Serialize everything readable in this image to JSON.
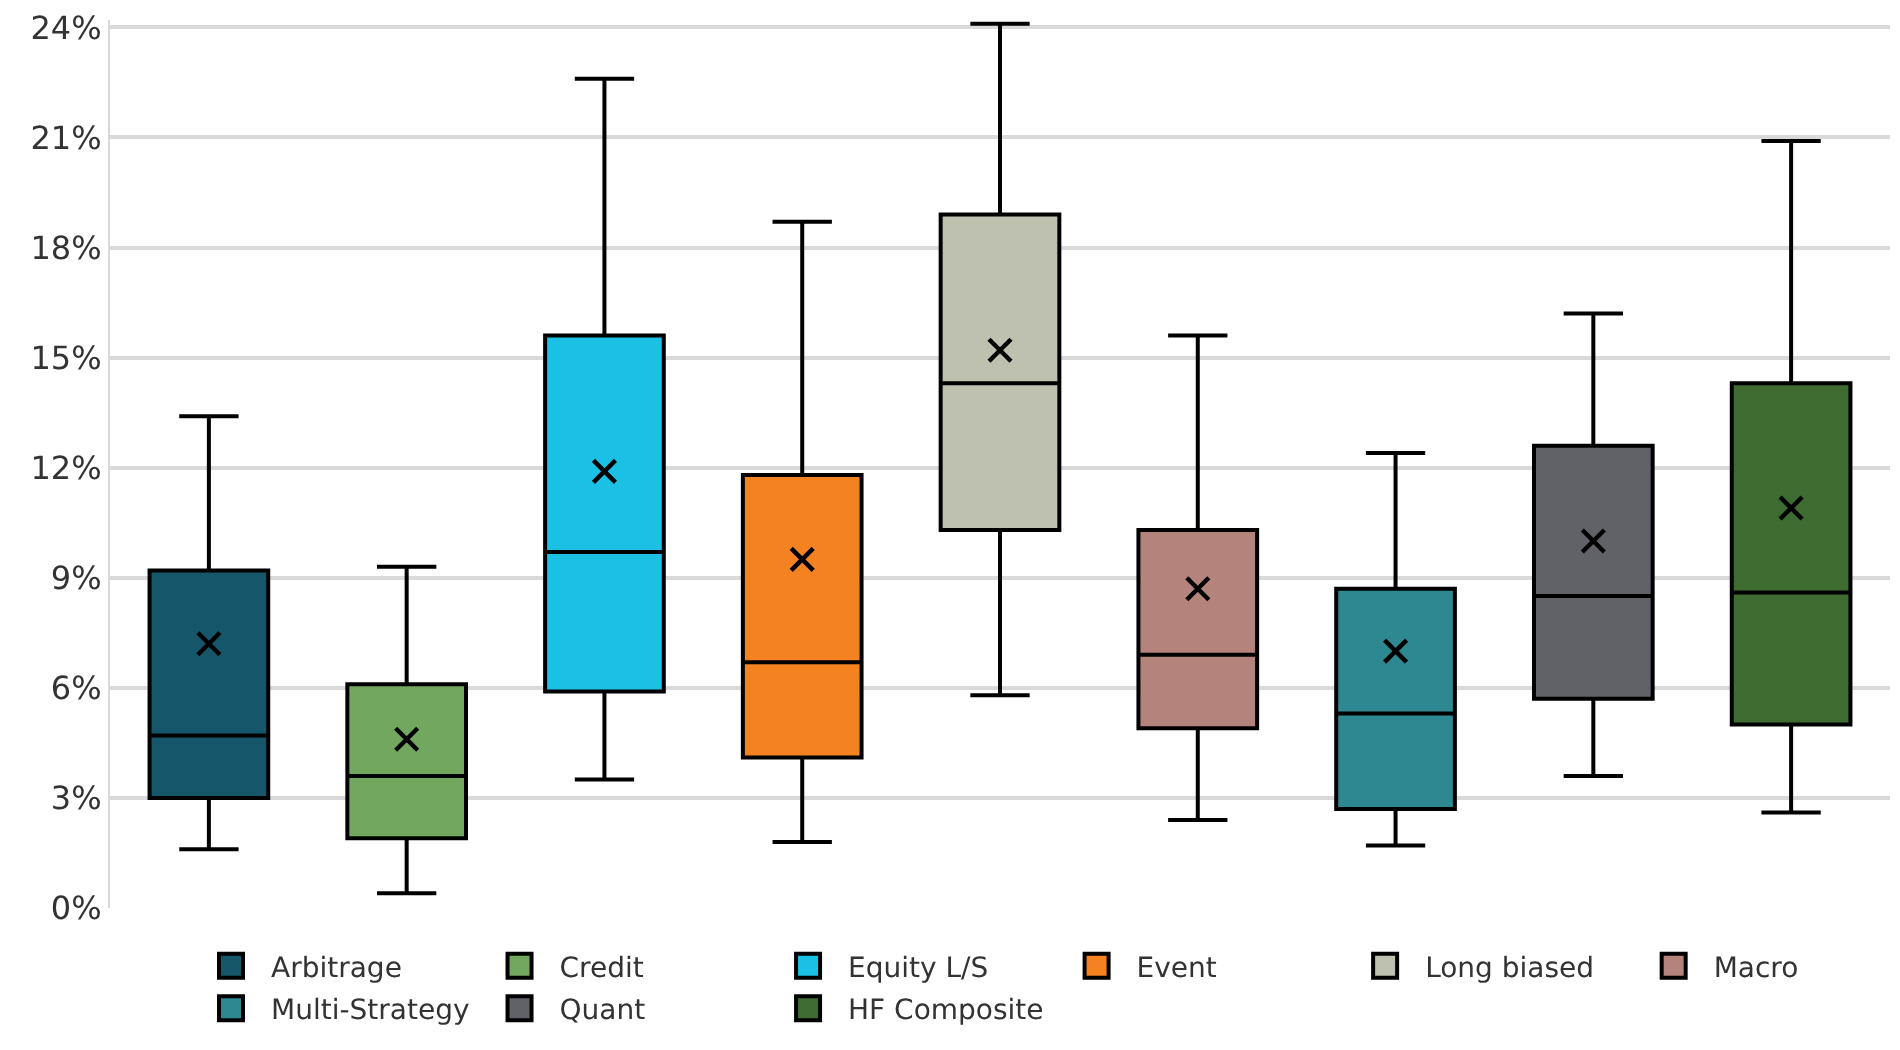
{
  "chart_data": {
    "type": "box",
    "categories": [
      null,
      null,
      null,
      null,
      null,
      null,
      null,
      null,
      null
    ],
    "ylim": [
      0,
      24.2
    ],
    "yticks": [
      {
        "value": 0,
        "label": "0%"
      },
      {
        "value": 3,
        "label": "3%"
      },
      {
        "value": 6,
        "label": "6%"
      },
      {
        "value": 9,
        "label": "9%"
      },
      {
        "value": 12,
        "label": "12%"
      },
      {
        "value": 15,
        "label": "15%"
      },
      {
        "value": 18,
        "label": "18%"
      },
      {
        "value": 21,
        "label": "21%"
      },
      {
        "value": 24,
        "label": "24%"
      }
    ],
    "grid": "y",
    "legend": "bottom",
    "tick_labels": "y",
    "marker": "cross",
    "series": [
      {
        "name": "Arbitrage",
        "color": "#15566b",
        "boxes": [
          {
            "low": 1.6,
            "q1": 3.0,
            "median": 4.7,
            "q3": 9.2,
            "high": 13.4,
            "mean": 7.2
          },
          null,
          null,
          null,
          null,
          null,
          null,
          null,
          null
        ]
      },
      {
        "name": "Credit",
        "color": "#72a760",
        "boxes": [
          null,
          {
            "low": 0.4,
            "q1": 1.9,
            "median": 3.6,
            "q3": 6.1,
            "high": 9.3,
            "mean": 4.6
          },
          null,
          null,
          null,
          null,
          null,
          null,
          null
        ]
      },
      {
        "name": "Equity L/S",
        "color": "#1bc1e5",
        "boxes": [
          null,
          null,
          {
            "low": 3.5,
            "q1": 5.9,
            "median": 9.7,
            "q3": 15.6,
            "high": 22.6,
            "mean": 11.9
          },
          null,
          null,
          null,
          null,
          null,
          null
        ]
      },
      {
        "name": "Event",
        "color": "#f58220",
        "boxes": [
          null,
          null,
          null,
          {
            "low": 1.8,
            "q1": 4.1,
            "median": 6.7,
            "q3": 11.8,
            "high": 18.7,
            "mean": 9.5
          },
          null,
          null,
          null,
          null,
          null
        ]
      },
      {
        "name": "Long biased",
        "color": "#bec0b0",
        "boxes": [
          null,
          null,
          null,
          null,
          {
            "low": 5.8,
            "q1": 10.3,
            "median": 14.3,
            "q3": 18.9,
            "high": 24.1,
            "mean": 15.2
          },
          null,
          null,
          null,
          null
        ]
      },
      {
        "name": "Macro",
        "color": "#b3837c",
        "boxes": [
          null,
          null,
          null,
          null,
          null,
          {
            "low": 2.4,
            "q1": 4.9,
            "median": 6.9,
            "q3": 10.3,
            "high": 15.6,
            "mean": 8.7
          },
          null,
          null,
          null
        ]
      },
      {
        "name": "Multi-Strategy",
        "color": "#2e8891",
        "boxes": [
          null,
          null,
          null,
          null,
          null,
          null,
          {
            "low": 1.7,
            "q1": 2.7,
            "median": 5.3,
            "q3": 8.7,
            "high": 12.4,
            "mean": 7.0
          },
          null,
          null
        ]
      },
      {
        "name": "Quant",
        "color": "#616268",
        "boxes": [
          null,
          null,
          null,
          null,
          null,
          null,
          null,
          {
            "low": 3.6,
            "q1": 5.7,
            "median": 8.5,
            "q3": 12.6,
            "high": 16.2,
            "mean": 10.0
          },
          null
        ]
      },
      {
        "name": "HF Composite",
        "color": "#3e6b30",
        "boxes": [
          null,
          null,
          null,
          null,
          null,
          null,
          null,
          null,
          {
            "low": 2.6,
            "q1": 5.0,
            "median": 8.6,
            "q3": 14.3,
            "high": 20.9,
            "mean": 10.9
          }
        ]
      }
    ]
  }
}
